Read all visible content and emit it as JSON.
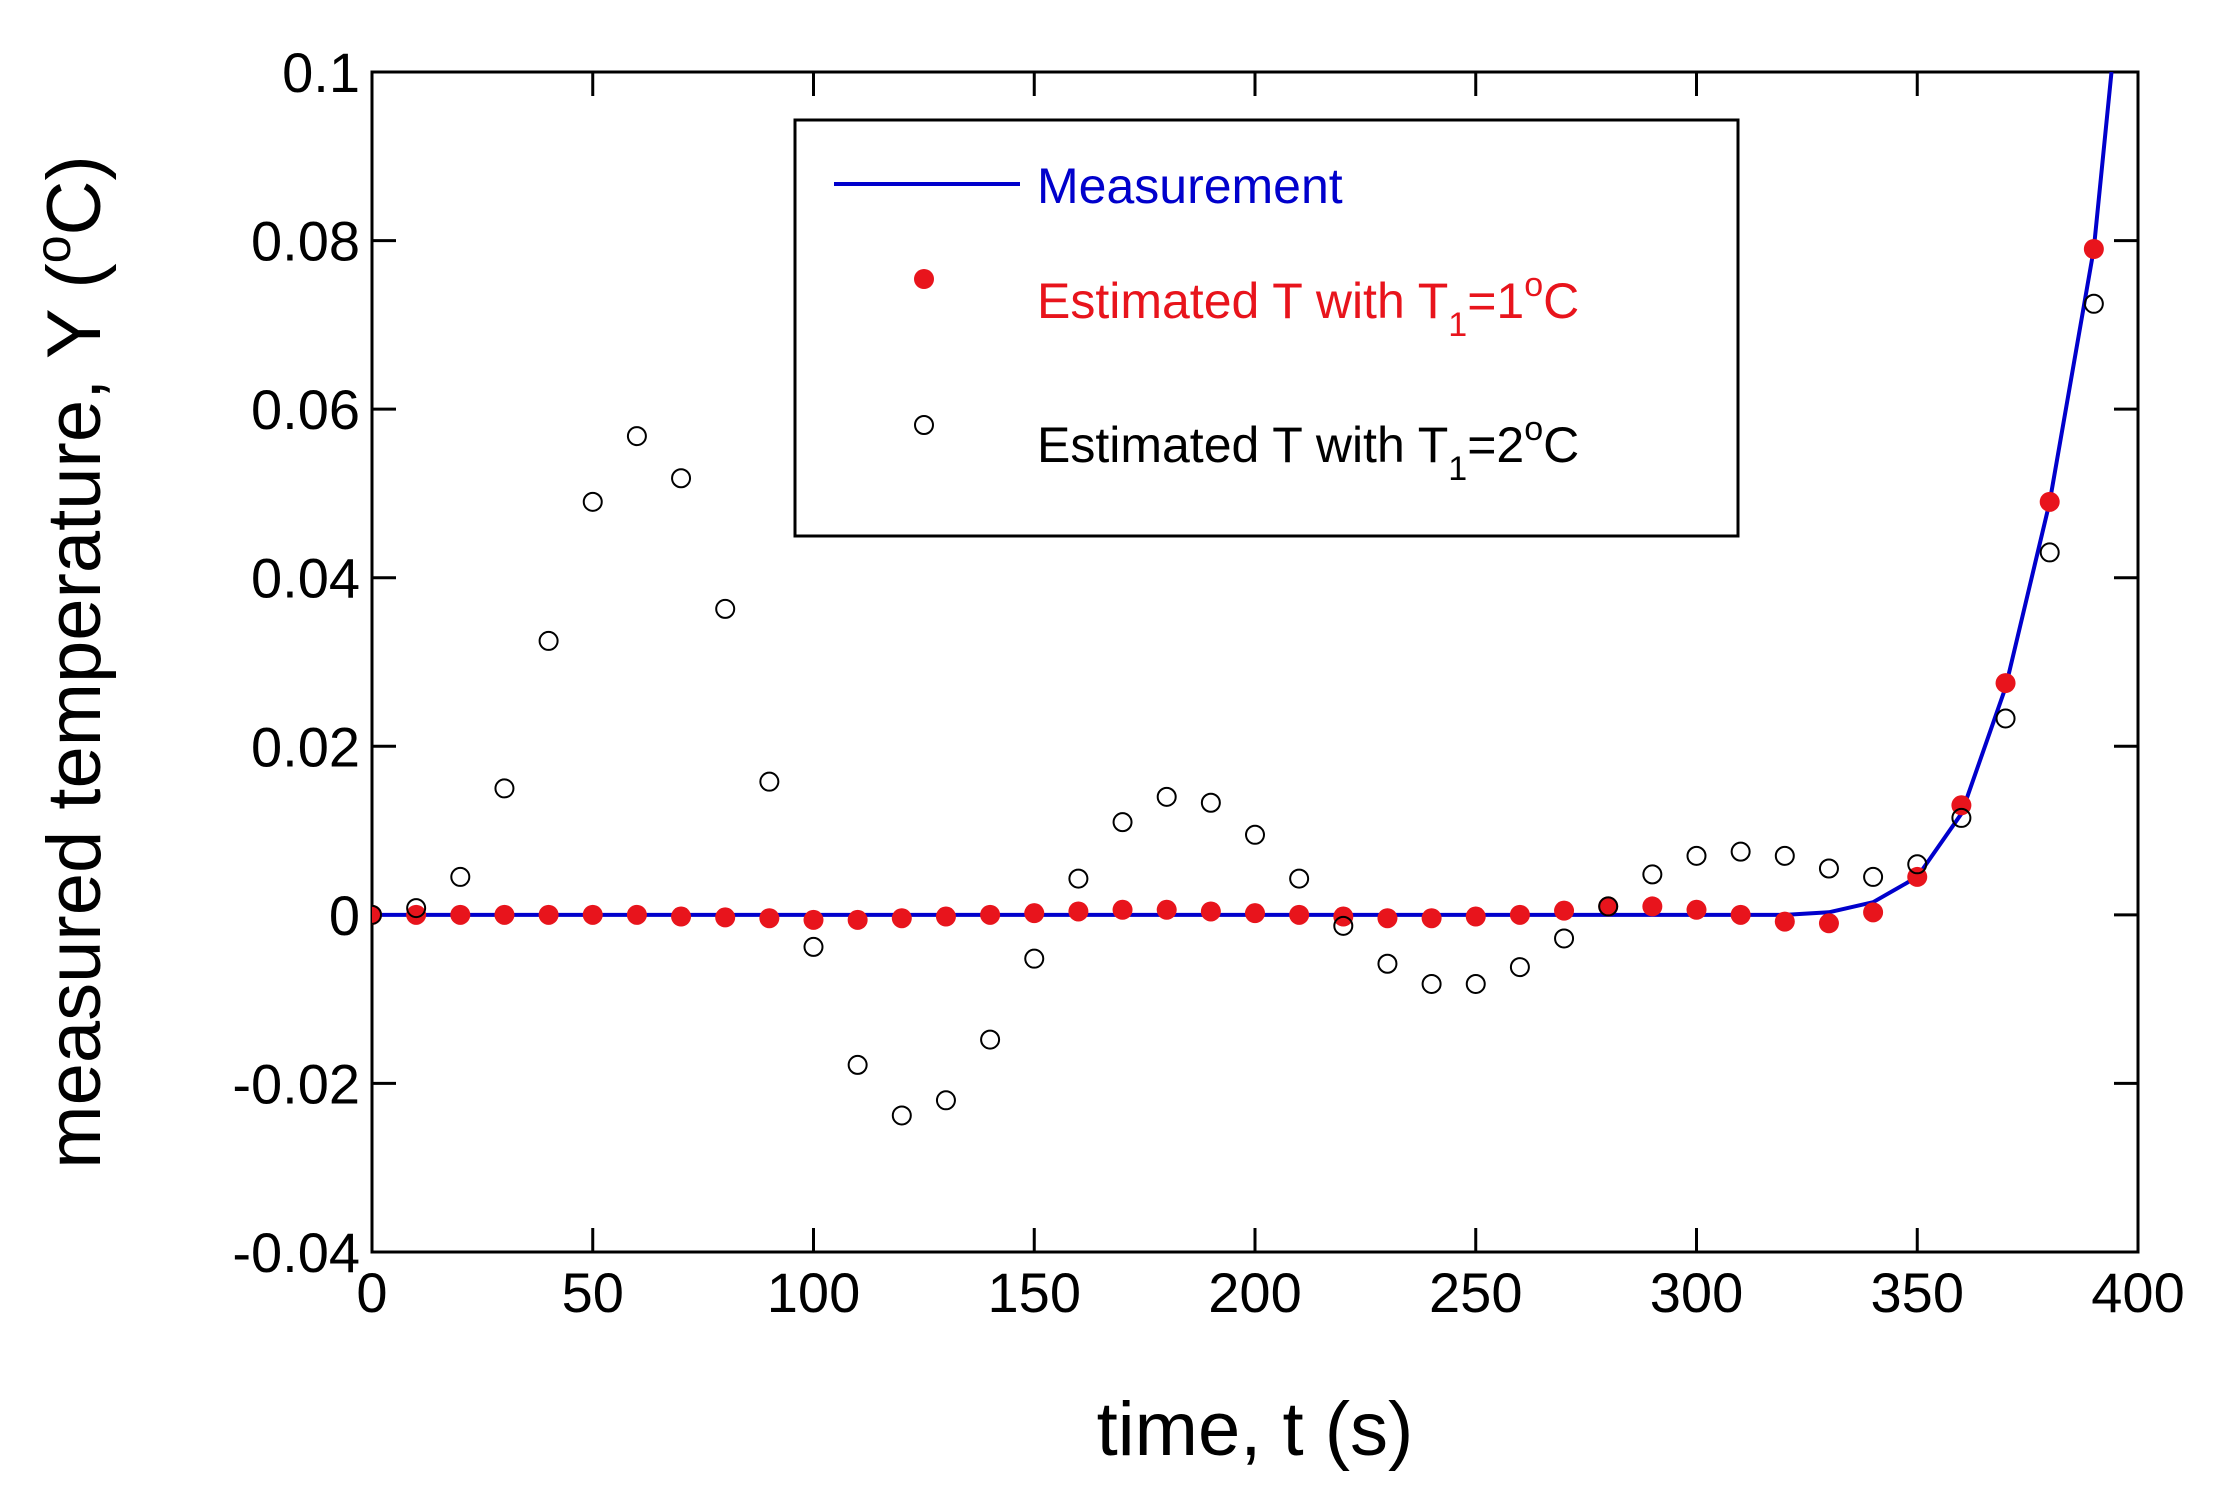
{
  "chart_data": {
    "type": "line",
    "xlabel": "time, t (s)",
    "ylabel": {
      "main": "measured temperature, Y (",
      "sup": "o",
      "tail": "C)"
    },
    "xlim": [
      0,
      400
    ],
    "ylim": [
      -0.04,
      0.1
    ],
    "xticks": [
      0,
      50,
      100,
      150,
      200,
      250,
      300,
      350,
      400
    ],
    "yticks": [
      -0.04,
      -0.02,
      0,
      0.02,
      0.04,
      0.06,
      0.08,
      0.1
    ],
    "xtick_labels": [
      "0",
      "50",
      "100",
      "150",
      "200",
      "250",
      "300",
      "350",
      "400"
    ],
    "ytick_labels": [
      "-0.04",
      "-0.02",
      "0",
      "0.02",
      "0.04",
      "0.06",
      "0.08",
      "0.1"
    ],
    "grid": false,
    "legend_position": "top-center",
    "legend": [
      {
        "key": "measurement",
        "label": "Measurement",
        "color": "#0000cc"
      },
      {
        "key": "t1_1",
        "label_main": "Estimated T with T",
        "label_sub": "1",
        "label_eq": "=1",
        "label_sup": "o",
        "label_tail": "C",
        "color": "#e8141c"
      },
      {
        "key": "t1_2",
        "label_main": "Estimated T with T",
        "label_sub": "1",
        "label_eq": "=2",
        "label_sup": "o",
        "label_tail": "C",
        "color": "#000000"
      }
    ],
    "series": [
      {
        "name": "Measurement",
        "style": "line",
        "color": "#0000cc",
        "x": [
          0,
          10,
          20,
          30,
          40,
          50,
          60,
          70,
          80,
          90,
          100,
          110,
          120,
          130,
          140,
          150,
          160,
          170,
          180,
          190,
          200,
          210,
          220,
          230,
          240,
          250,
          260,
          270,
          280,
          290,
          300,
          310,
          320,
          330,
          340,
          350,
          360,
          370,
          380,
          390,
          394
        ],
        "y": [
          0,
          0,
          0,
          0,
          0,
          0,
          0,
          0,
          0,
          0,
          0,
          0,
          0,
          0,
          0,
          0,
          0,
          0,
          0,
          0,
          0,
          0,
          0,
          0,
          0,
          0,
          0,
          0,
          0,
          0,
          0,
          0,
          0,
          0.0003,
          0.0015,
          0.0045,
          0.012,
          0.027,
          0.049,
          0.079,
          0.1
        ]
      },
      {
        "name": "Estimated T with T1=1oC",
        "style": "filled-marker",
        "color": "#e8141c",
        "x": [
          0,
          10,
          20,
          30,
          40,
          50,
          60,
          70,
          80,
          90,
          100,
          110,
          120,
          130,
          140,
          150,
          160,
          170,
          180,
          190,
          200,
          210,
          220,
          230,
          240,
          250,
          260,
          270,
          280,
          290,
          300,
          310,
          320,
          330,
          340,
          350,
          360,
          370,
          380,
          390
        ],
        "y": [
          0,
          0,
          0,
          0,
          0,
          0,
          0,
          -0.0002,
          -0.0003,
          -0.0004,
          -0.0006,
          -0.0006,
          -0.0004,
          -0.0002,
          0,
          0.0002,
          0.0004,
          0.0006,
          0.0006,
          0.0004,
          0.0002,
          0,
          -0.0002,
          -0.0004,
          -0.0004,
          -0.0002,
          0,
          0.0005,
          0.001,
          0.001,
          0.0006,
          0,
          -0.0008,
          -0.001,
          0.0003,
          0.0045,
          0.013,
          0.0275,
          0.049,
          0.079
        ]
      },
      {
        "name": "Estimated T with T1=2oC",
        "style": "open-marker",
        "color": "#000000",
        "x": [
          0,
          10,
          20,
          30,
          40,
          50,
          60,
          70,
          80,
          90,
          100,
          110,
          120,
          130,
          140,
          150,
          160,
          170,
          180,
          190,
          200,
          210,
          220,
          230,
          240,
          250,
          260,
          270,
          280,
          290,
          300,
          310,
          320,
          330,
          340,
          350,
          360,
          370,
          380,
          390
        ],
        "y": [
          0,
          0.0008,
          0.0045,
          0.015,
          0.0325,
          0.049,
          0.0568,
          0.0518,
          0.0363,
          0.0158,
          -0.0038,
          -0.0178,
          -0.0238,
          -0.022,
          -0.0148,
          -0.0052,
          0.0043,
          0.011,
          0.014,
          0.0133,
          0.0095,
          0.0043,
          -0.0013,
          -0.0058,
          -0.0082,
          -0.0082,
          -0.0062,
          -0.0028,
          0.001,
          0.0048,
          0.007,
          0.0075,
          0.007,
          0.0055,
          0.0045,
          0.006,
          0.0115,
          0.0233,
          0.043,
          0.0725
        ]
      }
    ]
  }
}
